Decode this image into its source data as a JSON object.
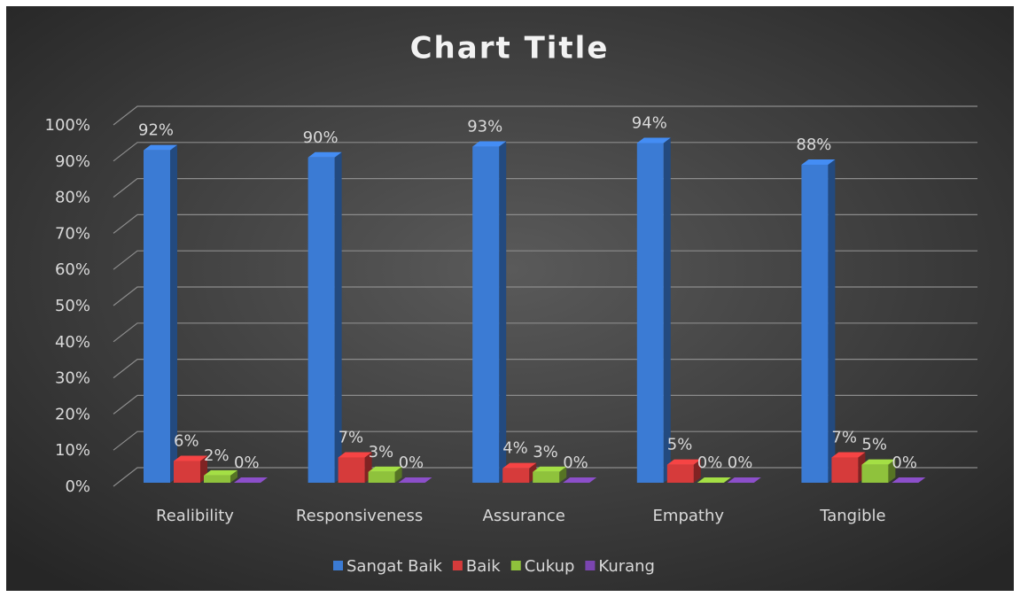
{
  "chart_data": {
    "type": "bar3d",
    "title": "Chart Title",
    "categories": [
      "Realibility",
      "Responsiveness",
      "Assurance",
      "Empathy",
      "Tangible"
    ],
    "series": [
      {
        "name": "Sangat Baik",
        "color": "#3b7bd4",
        "values": [
          92,
          90,
          93,
          94,
          88
        ],
        "value_labels": [
          "92%",
          "90%",
          "93%",
          "94%",
          "88%"
        ]
      },
      {
        "name": "Baik",
        "color": "#d63b3b",
        "values": [
          6,
          7,
          4,
          5,
          7
        ],
        "value_labels": [
          "6%",
          "7%",
          "4%",
          "5%",
          "7%"
        ]
      },
      {
        "name": "Cukup",
        "color": "#8fc23c",
        "values": [
          2,
          3,
          3,
          0,
          5
        ],
        "value_labels": [
          "2%",
          "3%",
          "3%",
          "0%",
          "5%"
        ]
      },
      {
        "name": "Kurang",
        "color": "#7a45b0",
        "values": [
          0,
          0,
          0,
          0,
          0
        ],
        "value_labels": [
          "0%",
          "0%",
          "0%",
          "0%",
          "0%"
        ]
      }
    ],
    "ylim": [
      0,
      100
    ],
    "yticks": [
      {
        "value": 0,
        "label": "0%"
      },
      {
        "value": 10,
        "label": "10%"
      },
      {
        "value": 20,
        "label": "20%"
      },
      {
        "value": 30,
        "label": "30%"
      },
      {
        "value": 40,
        "label": "40%"
      },
      {
        "value": 50,
        "label": "50%"
      },
      {
        "value": 60,
        "label": "60%"
      },
      {
        "value": 70,
        "label": "70%"
      },
      {
        "value": 80,
        "label": "80%"
      },
      {
        "value": 90,
        "label": "90%"
      },
      {
        "value": 100,
        "label": "100%"
      }
    ],
    "grid": true,
    "legend": "bottom"
  }
}
